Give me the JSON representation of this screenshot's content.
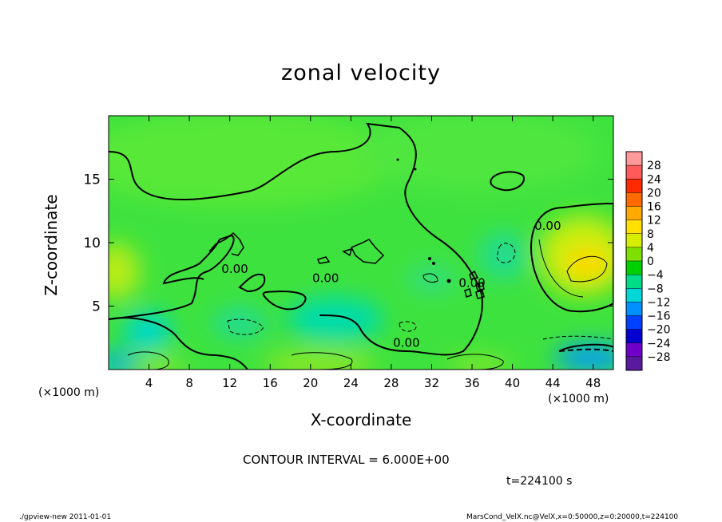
{
  "chart_data": {
    "type": "heatmap",
    "title": "zonal velocity",
    "xlabel": "X-coordinate",
    "ylabel": "Z-coordinate",
    "x_unit_label": "(×1000 m)",
    "x_ticks": [
      4,
      8,
      12,
      16,
      20,
      24,
      28,
      32,
      36,
      40,
      44,
      48
    ],
    "y_ticks": [
      5,
      10,
      15
    ],
    "xlim": [
      0,
      50
    ],
    "ylim": [
      0,
      20
    ],
    "contour_labels": [
      {
        "text": "0.00",
        "x": 12.5,
        "z": 7.6
      },
      {
        "text": "0.00",
        "x": 21.5,
        "z": 6.9
      },
      {
        "text": "0.00",
        "x": 29.5,
        "z": 1.8
      },
      {
        "text": "0.00",
        "x": 36.0,
        "z": 6.5
      },
      {
        "text": "0.00",
        "x": 43.5,
        "z": 11.0
      }
    ],
    "colorbar": {
      "labels": [
        "28",
        "24",
        "20",
        "16",
        "12",
        "8",
        "4",
        "0",
        "−4",
        "−8",
        "−12",
        "−16",
        "−20",
        "−24",
        "−28"
      ],
      "colors": [
        "#ff9a9a",
        "#ff5a5a",
        "#ff2a00",
        "#ff6a00",
        "#ffaa00",
        "#ffe000",
        "#d6ef00",
        "#7fe000",
        "#00d000",
        "#00dd88",
        "#00d6d6",
        "#0090ff",
        "#0040ff",
        "#0000d0",
        "#7000c8",
        "#5a1aa0"
      ]
    },
    "regions": [
      {
        "x": 48,
        "z": 8,
        "value": 8
      },
      {
        "x": 1,
        "z": 8,
        "value": 6
      },
      {
        "x": 4,
        "z": 3,
        "value": -9
      },
      {
        "x": 22,
        "z": 4,
        "value": -8
      },
      {
        "x": 47,
        "z": 1,
        "value": -14
      },
      {
        "x": 1,
        "z": 1,
        "value": -10
      },
      {
        "x": 39,
        "z": 9,
        "value": -5
      }
    ]
  },
  "contour_interval": "CONTOUR INTERVAL = 6.000E+00",
  "time": "t=224100 s",
  "footer_left": "./gpview-new  2011-01-01",
  "footer_right": "MarsCond_VelX.nc@VelX,x=0:50000,z=0:20000,t=224100"
}
